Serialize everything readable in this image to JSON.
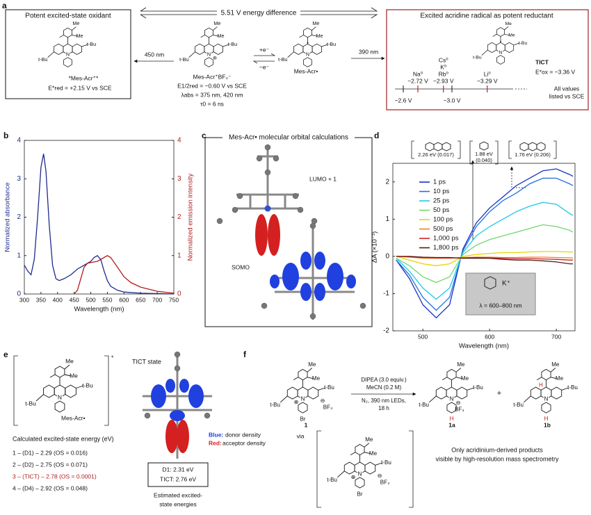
{
  "panels": {
    "a": {
      "label": "a",
      "left_title": "Potent excited-state oxidant",
      "energy_difference": "5.51 V energy difference",
      "right_title": "Excited acridine radical as potent reductant",
      "arrow_left": "450 nm",
      "arrow_right": "390 nm",
      "oxidant_name": "*Mes-Acr⁺*",
      "oxidant_potential": "E*red = +2.15 V vs SCE",
      "acr_name": "Mes-Acr⁺BF₄⁻",
      "acr_props": [
        "E1/2red = −0.60 V vs SCE",
        "λabs = 375 nm, 420 nm",
        "τ0 = 6 ns"
      ],
      "reduce": "+e⁻",
      "oxidize": "−e⁻",
      "radical_name": "Mes-Acr•",
      "tict": "TICT",
      "tict_potential": "E*ox = −3.36 V",
      "note": [
        "All values",
        "listed vs SCE"
      ],
      "scale": {
        "ends": [
          {
            "value": -2.6,
            "label": "−2.6 V"
          },
          {
            "value": -3.0,
            "label": "−3.0 V"
          }
        ],
        "metals": [
          {
            "names": [
              "Na⁰"
            ],
            "value": -2.72,
            "label": "−2.72 V"
          },
          {
            "names": [
              "Cs⁰",
              "K⁰",
              "Rb⁰"
            ],
            "value": -2.93,
            "label": "−2.93 V"
          },
          {
            "names": [
              "Li⁰"
            ],
            "value": -3.29,
            "label": "−3.29 V"
          }
        ]
      }
    },
    "b": {
      "label": "b"
    },
    "c": {
      "label": "c",
      "title": "Mes-Acr• molecular orbital calculations",
      "lumo": "LUMO + 1",
      "somo": "SOMO"
    },
    "d": {
      "label": "d",
      "annotations": [
        "2.26 eV (0.017)",
        "1.88 eV",
        "(0.040)",
        "1.76 eV (0.206)"
      ],
      "inset_ion": "K⁺",
      "inset_range": "λ = 600–800 nm"
    },
    "e": {
      "label": "e",
      "star": "*",
      "name": "Mes-Acr•",
      "state": "TICT state",
      "list_title": "Calculated excited-state energy (eV)",
      "list": [
        "1 – (D1) – 2.29 (OS = 0.016)",
        "2 – (D2) – 2.75 (OS = 0.071)",
        "3 – (TICT) – 2.78 (OS = 0.0001)",
        "4 – (D4) – 2.92 (OS = 0.048)"
      ],
      "blue_key": "Blue:",
      "blue_text": "donor density",
      "red_key": "Red:",
      "red_text": "acceptor density",
      "box": [
        "D1: 2.31 eV",
        "TICT: 2.76 eV"
      ],
      "caption": [
        "Estimated excited-",
        "state energies"
      ]
    },
    "f": {
      "label": "f",
      "conditions": [
        "DIPEA (3.0 equiv.)",
        "MeCN (0.2 M)",
        "N₂, 390 nm LEDs,",
        "18 h"
      ],
      "compounds": [
        "1",
        "1a",
        "1b"
      ],
      "plus": "+",
      "via": "via",
      "conclusion": [
        "Only acridinium-derived products",
        "visible by high-resolution mass spectrometry"
      ]
    }
  },
  "molecules": [
    {
      "labels": [
        "Me",
        "Me",
        "t-Bu",
        "t-Bu",
        "N"
      ],
      "extras": []
    },
    {
      "labels": [
        "Me",
        "Me",
        "t-Bu",
        "t-Bu",
        "N"
      ],
      "extras": [
        "⊕"
      ]
    },
    {
      "labels": [
        "Me",
        "Me",
        "t-Bu",
        "t-Bu",
        "N"
      ],
      "extras": [
        "•"
      ]
    },
    {
      "labels": [
        "Me",
        "Me",
        "t-Bu",
        "t-Bu",
        "N"
      ],
      "extras": [
        "•"
      ]
    },
    {
      "labels": [
        "Me",
        "Me",
        "t-Bu",
        "t-Bu",
        "N"
      ],
      "extras": []
    },
    {
      "labels": [
        "Me",
        "Me",
        "t-Bu",
        "t-Bu",
        "N"
      ],
      "extras": [
        "⊕",
        "⊖",
        "BF₄",
        "Br"
      ]
    },
    {
      "labels": [
        "Me",
        "Me",
        "t-Bu",
        "t-Bu",
        "N"
      ],
      "extras": [
        "⊖",
        "BF₄",
        "H"
      ]
    },
    {
      "labels": [
        "Me",
        "Me",
        "t-Bu",
        "t-Bu",
        "N"
      ],
      "extras": [
        "H",
        "H"
      ]
    },
    {
      "labels": [
        "Me",
        "Me",
        "t-Bu",
        "t-Bu",
        "N"
      ],
      "extras": [
        "⊕",
        "⊖",
        "BF₄",
        "Br"
      ]
    }
  ],
  "chart_data": [
    {
      "type": "line",
      "x_label": "Wavelength (nm)",
      "y_label": "Normalized absorbance",
      "y2_label": "Normalized emission intensity",
      "xlim": [
        300,
        750
      ],
      "xticks": [
        300,
        350,
        400,
        450,
        500,
        550,
        600,
        650,
        700,
        750
      ],
      "ylim": [
        0,
        4
      ],
      "yticks": [
        0,
        1,
        2,
        3,
        4
      ],
      "y2lim": [
        0,
        4
      ],
      "y2ticks": [
        0,
        1,
        2,
        3,
        4
      ],
      "series": [
        {
          "color": "#1c2a8c",
          "x": [
            300,
            310,
            320,
            330,
            340,
            350,
            358,
            365,
            375,
            385,
            395,
            405,
            420,
            440,
            460,
            480,
            500,
            510,
            520,
            530,
            540,
            550,
            560,
            580,
            600,
            650,
            700,
            750
          ],
          "values": [
            0.75,
            0.6,
            0.5,
            0.9,
            2.0,
            3.3,
            3.65,
            3.2,
            1.8,
            0.75,
            0.4,
            0.35,
            0.4,
            0.5,
            0.65,
            0.75,
            0.85,
            0.95,
            1.0,
            0.9,
            0.6,
            0.35,
            0.2,
            0.1,
            0.05,
            0.02,
            0.01,
            0
          ]
        },
        {
          "color": "#b01c1c",
          "axis": "y2",
          "x": [
            450,
            460,
            470,
            480,
            490,
            500,
            520,
            540,
            550,
            560,
            580,
            600,
            620,
            650,
            700,
            750
          ],
          "values": [
            0,
            0.1,
            0.4,
            0.7,
            0.8,
            0.82,
            0.85,
            0.95,
            1.0,
            0.95,
            0.7,
            0.45,
            0.3,
            0.18,
            0.07,
            0.02
          ]
        }
      ]
    },
    {
      "type": "line",
      "x_label": "Wavelength (nm)",
      "y_label": "ΔA (×10⁻³)",
      "legend": "upper left",
      "xlim": [
        455,
        728
      ],
      "xticks": [
        500,
        600,
        700
      ],
      "ylim": [
        -2,
        2.5
      ],
      "yticks": [
        -2,
        -1,
        0,
        1,
        2
      ],
      "x": [
        460,
        480,
        500,
        520,
        540,
        560,
        580,
        600,
        620,
        640,
        660,
        680,
        700,
        720,
        725
      ],
      "series": [
        {
          "name": "1 ps",
          "color": "#1530c0",
          "values": [
            -0.1,
            -0.6,
            -1.3,
            -1.65,
            -1.3,
            0.2,
            0.9,
            1.3,
            1.6,
            1.9,
            2.1,
            2.3,
            2.35,
            2.2,
            2.15
          ]
        },
        {
          "name": "10 ps",
          "color": "#1f6fe0",
          "values": [
            -0.1,
            -0.5,
            -1.1,
            -1.45,
            -1.1,
            0.15,
            0.8,
            1.2,
            1.5,
            1.7,
            1.95,
            2.1,
            2.1,
            1.95,
            1.9
          ]
        },
        {
          "name": "25 ps",
          "color": "#1fc8e8",
          "values": [
            -0.05,
            -0.4,
            -0.85,
            -1.15,
            -0.85,
            0.1,
            0.55,
            0.8,
            1.0,
            1.2,
            1.35,
            1.45,
            1.4,
            1.15,
            1.1
          ]
        },
        {
          "name": "50 ps",
          "color": "#6fd86a",
          "values": [
            -0.05,
            -0.25,
            -0.55,
            -0.7,
            -0.55,
            0.05,
            0.3,
            0.45,
            0.55,
            0.65,
            0.75,
            0.85,
            0.8,
            0.7,
            0.65
          ]
        },
        {
          "name": "100 ps",
          "color": "#e6d400",
          "values": [
            0,
            -0.1,
            -0.2,
            -0.25,
            -0.2,
            0,
            0.05,
            0.08,
            0.1,
            0.1,
            0.12,
            0.13,
            0.13,
            0.12,
            0.12
          ]
        },
        {
          "name": "500 ps",
          "color": "#f08020",
          "values": [
            0,
            -0.02,
            -0.05,
            -0.05,
            -0.05,
            -0.03,
            -0.02,
            -0.02,
            -0.03,
            -0.03,
            -0.02,
            -0.02,
            -0.03,
            -0.04,
            -0.04
          ]
        },
        {
          "name": "1,000 ps",
          "color": "#d02020",
          "values": [
            0,
            -0.01,
            -0.03,
            -0.04,
            -0.04,
            -0.04,
            -0.03,
            -0.04,
            -0.05,
            -0.06,
            -0.06,
            -0.07,
            -0.08,
            -0.1,
            -0.1
          ]
        },
        {
          "name": "1,800 ps",
          "color": "#5a1a10",
          "values": [
            0,
            0,
            -0.02,
            -0.03,
            -0.03,
            -0.05,
            -0.05,
            -0.05,
            -0.08,
            -0.1,
            -0.1,
            -0.12,
            -0.15,
            -0.2,
            -0.2
          ]
        }
      ]
    }
  ]
}
